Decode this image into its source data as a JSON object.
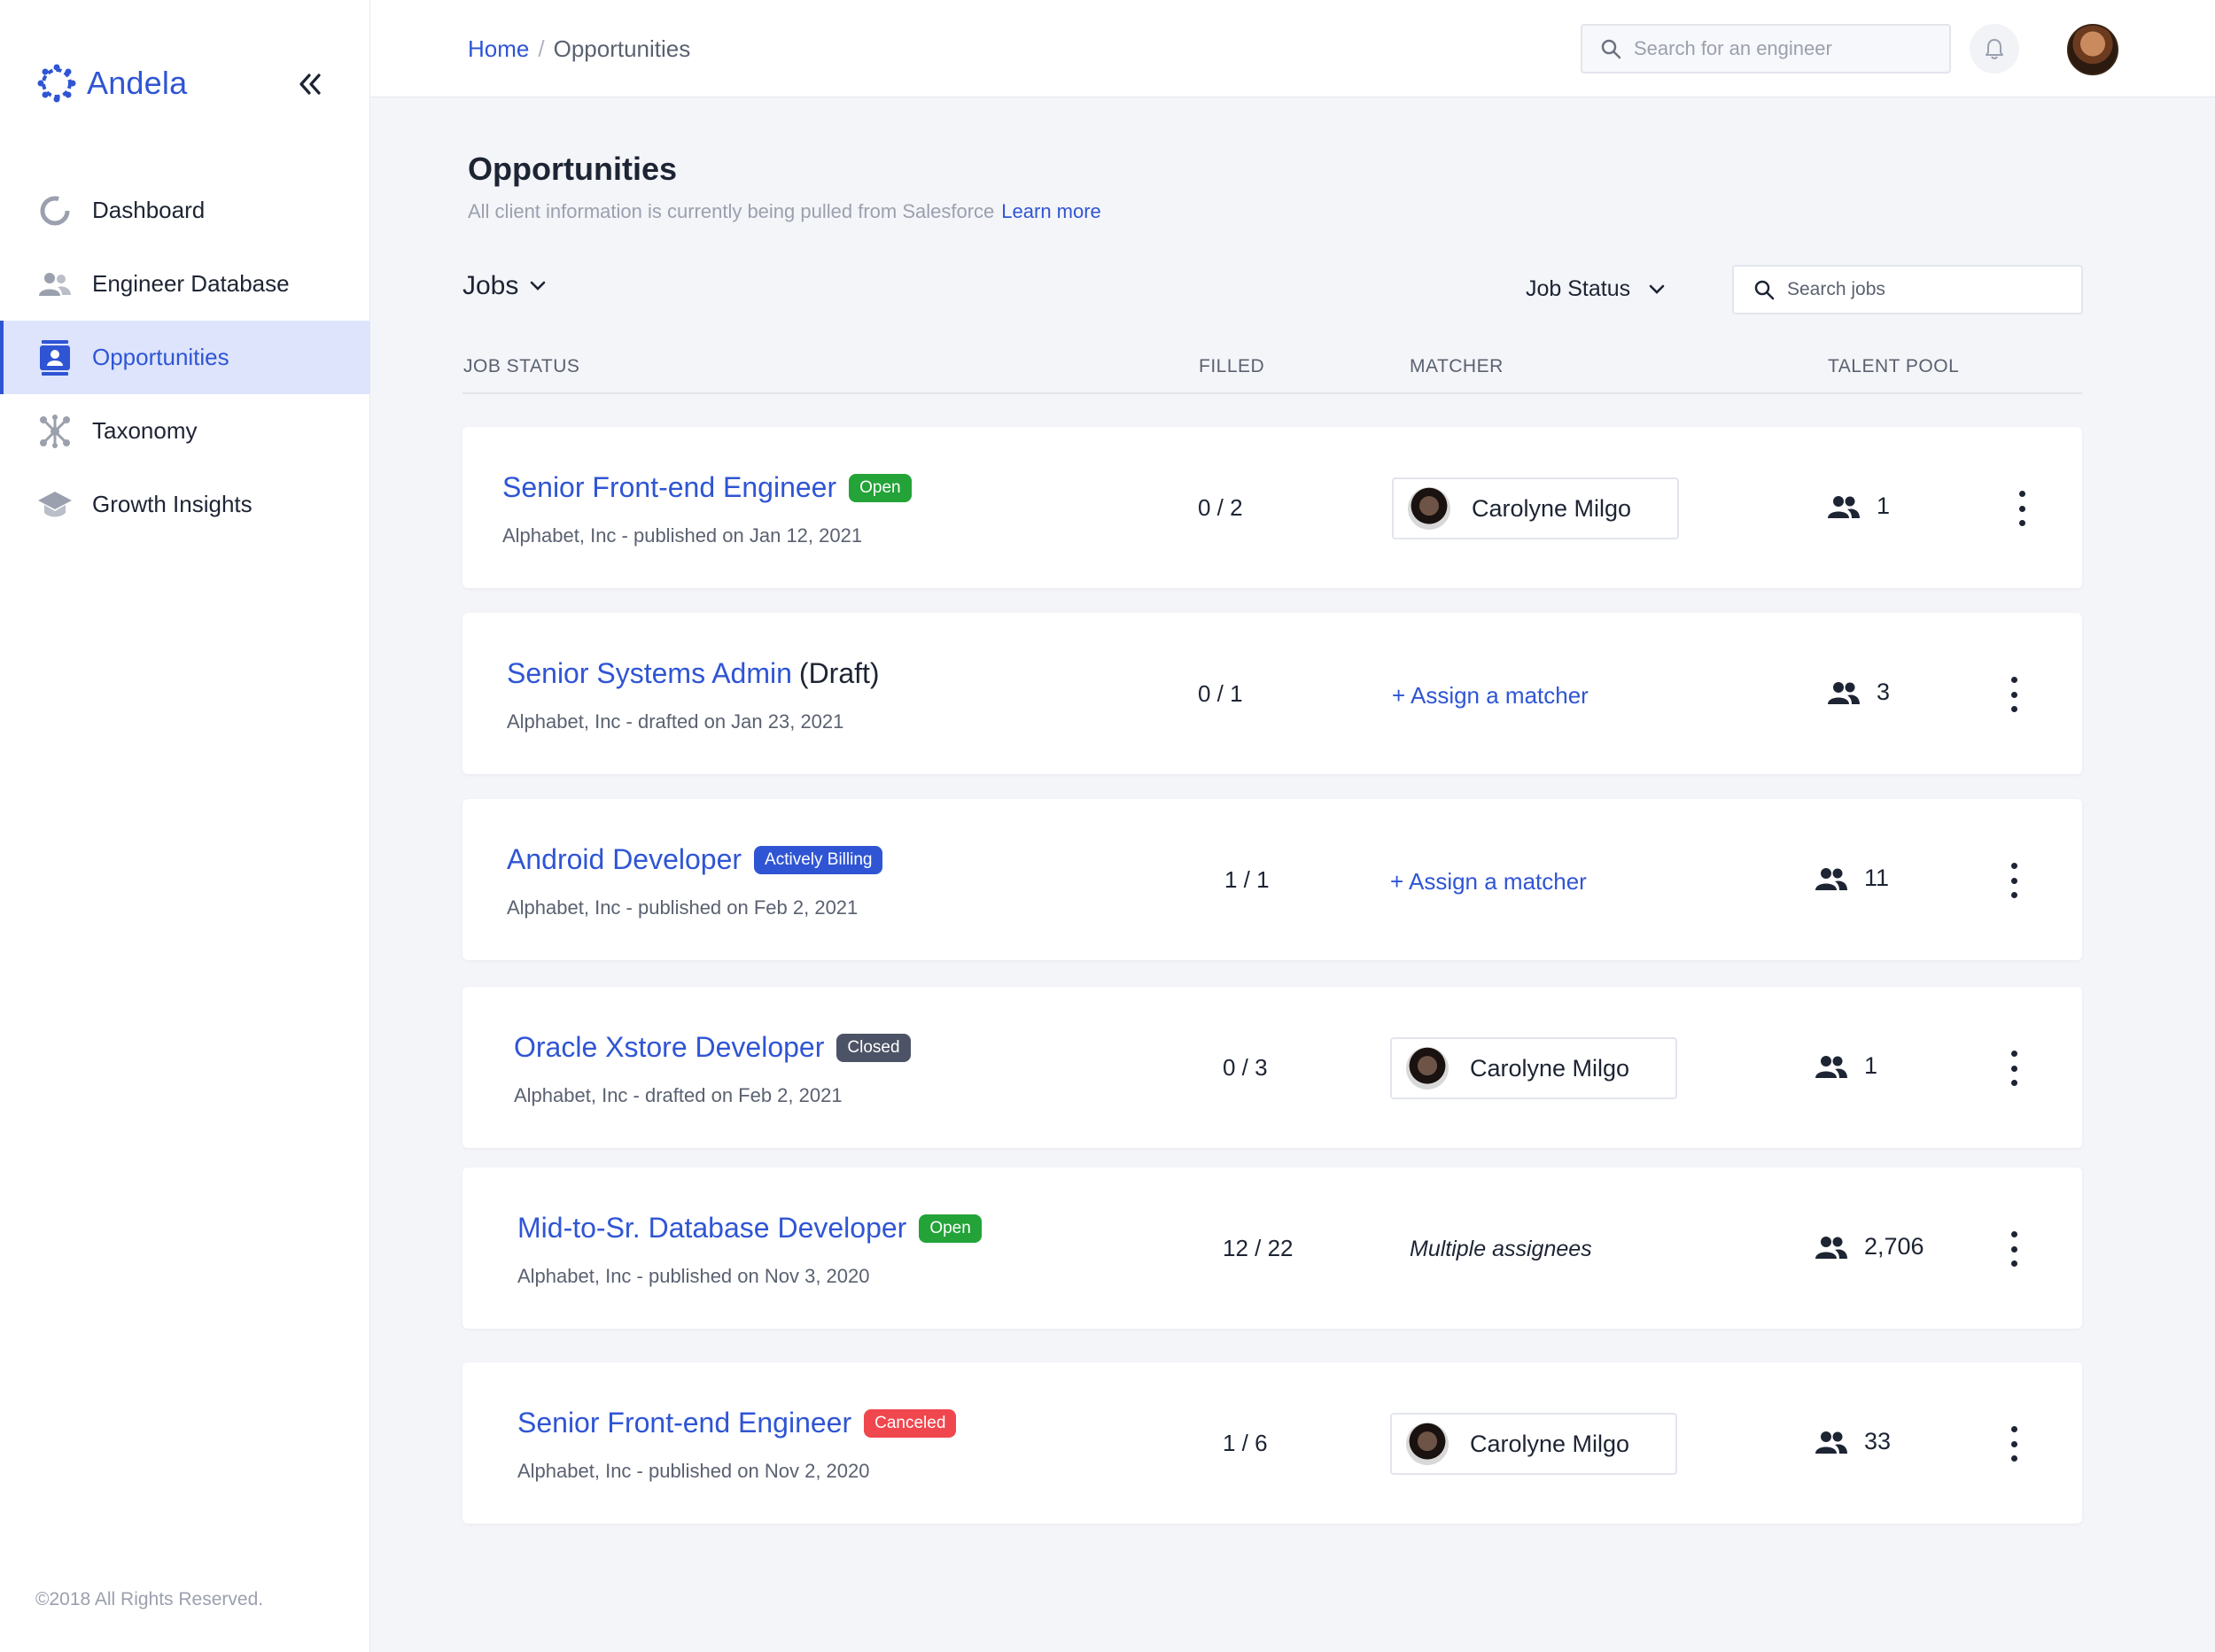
{
  "brand": {
    "name": "Andela",
    "accent": "#2f55d4"
  },
  "sidebar": {
    "collapse_label": "«",
    "items": [
      {
        "label": "Dashboard",
        "icon": "dashboard-ring-icon"
      },
      {
        "label": "Engineer Database",
        "icon": "people-icon"
      },
      {
        "label": "Opportunities",
        "icon": "contact-card-icon",
        "active": true
      },
      {
        "label": "Taxonomy",
        "icon": "network-icon"
      },
      {
        "label": "Growth Insights",
        "icon": "graduation-cap-icon"
      }
    ],
    "copyright": "©2018 All Rights Reserved."
  },
  "topbar": {
    "breadcrumb": {
      "home": "Home",
      "separator": "/",
      "current": "Opportunities"
    },
    "search_placeholder": "Search for an engineer"
  },
  "page": {
    "title": "Opportunities",
    "subtitle": "All client information is currently being pulled from Salesforce",
    "learn_more": "Learn more"
  },
  "filters": {
    "jobs_label": "Jobs",
    "status_label": "Job Status",
    "search_placeholder": "Search jobs"
  },
  "columns": [
    "JOB STATUS",
    "FILLED",
    "MATCHER",
    "TALENT POOL"
  ],
  "jobs": [
    {
      "title": "Senior Front-end Engineer",
      "draft_suffix": "",
      "badge": "Open",
      "meta": "Alphabet, Inc - published on Jan 12, 2021",
      "filled": "0 / 2",
      "matcher_type": "person",
      "matcher": "Carolyne Milgo",
      "pool": "1"
    },
    {
      "title": "Senior Systems Admin",
      "draft_suffix": "(Draft)",
      "badge": "",
      "meta": "Alphabet, Inc - drafted on Jan 23, 2021",
      "filled": "0 / 1",
      "matcher_type": "assign",
      "matcher": "+ Assign a matcher",
      "pool": "3"
    },
    {
      "title": "Android Developer",
      "draft_suffix": "",
      "badge": "Actively Billing",
      "meta": "Alphabet, Inc - published on Feb 2, 2021",
      "filled": "1 / 1",
      "matcher_type": "assign",
      "matcher": "+ Assign a matcher",
      "pool": "11"
    },
    {
      "title": "Oracle Xstore Developer",
      "draft_suffix": "",
      "badge": "Closed",
      "meta": "Alphabet, Inc - drafted on Feb 2, 2021",
      "filled": "0 / 3",
      "matcher_type": "person",
      "matcher": "Carolyne Milgo",
      "pool": "1"
    },
    {
      "title": "Mid-to-Sr. Database Developer",
      "draft_suffix": "",
      "badge": "Open",
      "meta": "Alphabet, Inc - published on Nov 3, 2020",
      "filled": "12 / 22",
      "matcher_type": "multiple",
      "matcher": "Multiple assignees",
      "pool": "2,706"
    },
    {
      "title": "Senior Front-end Engineer",
      "draft_suffix": "",
      "badge": "Canceled",
      "meta": "Alphabet, Inc - published on Nov 2, 2020",
      "filled": "1 / 6",
      "matcher_type": "person",
      "matcher": "Carolyne Milgo",
      "pool": "33"
    }
  ],
  "badge_colors": {
    "Open": "#23a338",
    "Actively Billing": "#2f55d4",
    "Closed": "#4d5366",
    "Canceled": "#f0474e"
  }
}
